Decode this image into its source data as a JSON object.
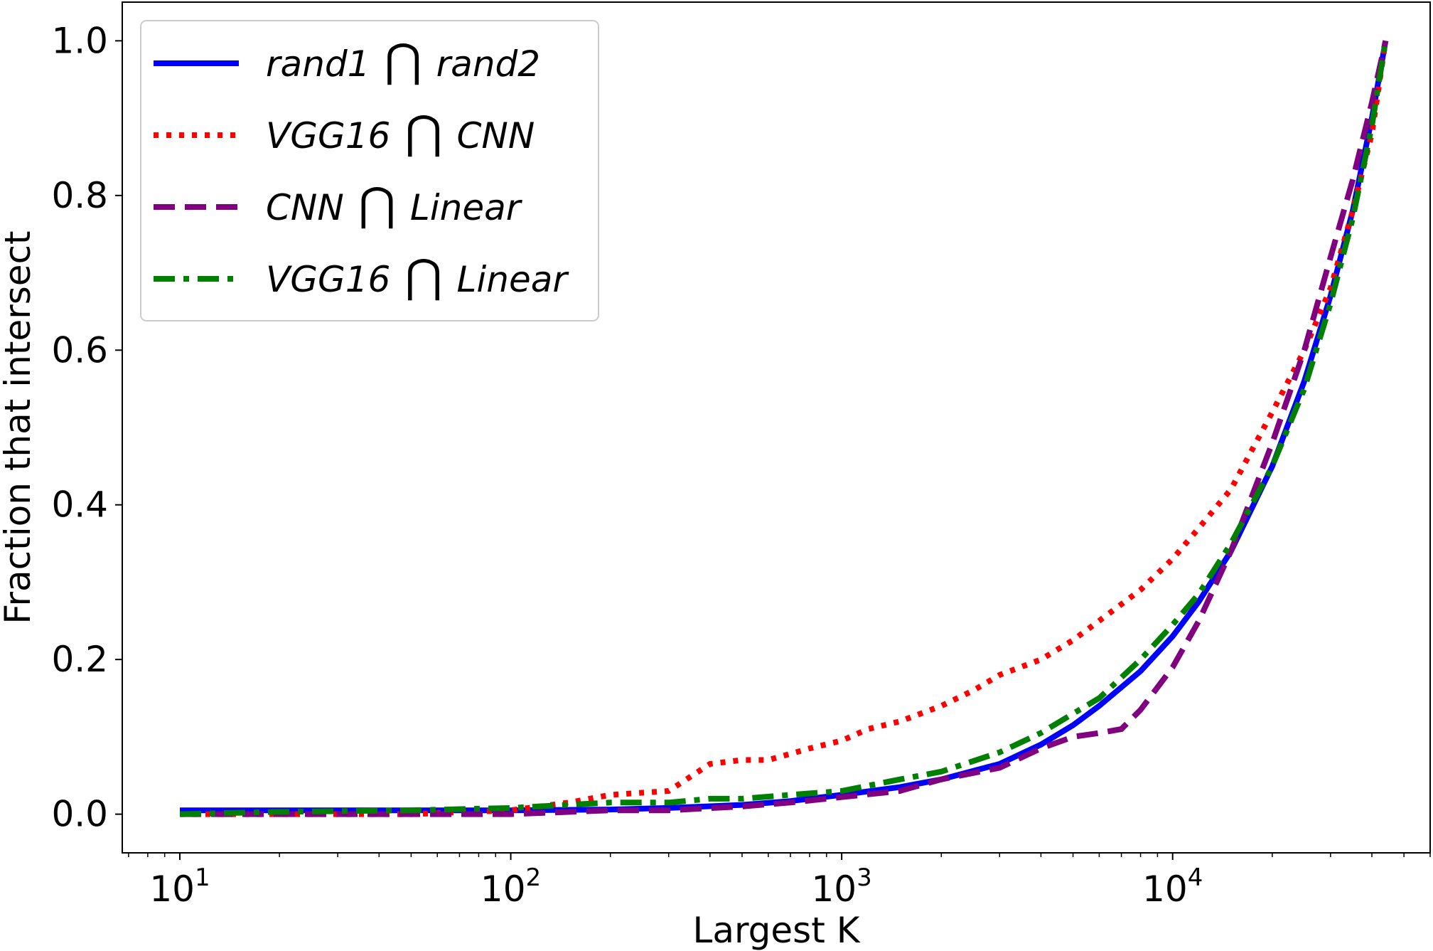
{
  "chart_data": {
    "type": "line",
    "xlabel": "Largest K",
    "ylabel": "Fraction that intersect",
    "xscale": "log",
    "xlim": [
      6.7,
      60000
    ],
    "ylim": [
      -0.05,
      1.05
    ],
    "x_ticks": [
      {
        "value": 10,
        "base": "10",
        "exp": "1"
      },
      {
        "value": 100,
        "base": "10",
        "exp": "2"
      },
      {
        "value": 1000,
        "base": "10",
        "exp": "3"
      },
      {
        "value": 10000,
        "base": "10",
        "exp": "4"
      }
    ],
    "y_ticks": [
      {
        "value": 0.0,
        "label": "0.0"
      },
      {
        "value": 0.2,
        "label": "0.2"
      },
      {
        "value": 0.4,
        "label": "0.4"
      },
      {
        "value": 0.6,
        "label": "0.6"
      },
      {
        "value": 0.8,
        "label": "0.8"
      },
      {
        "value": 1.0,
        "label": "1.0"
      }
    ],
    "grid": false,
    "legend_position": "upper-left",
    "series": [
      {
        "name_parts": [
          "rand1",
          "rand2"
        ],
        "color": "#0000ff",
        "style": "solid",
        "x": [
          10,
          20,
          50,
          100,
          200,
          300,
          500,
          700,
          1000,
          1500,
          2000,
          3000,
          4000,
          5000,
          6000,
          8000,
          10000,
          12000,
          15000,
          20000,
          25000,
          30000,
          35000,
          40000,
          44000
        ],
        "y": [
          0.005,
          0.005,
          0.005,
          0.005,
          0.006,
          0.008,
          0.012,
          0.017,
          0.025,
          0.035,
          0.045,
          0.065,
          0.09,
          0.115,
          0.14,
          0.185,
          0.23,
          0.275,
          0.34,
          0.45,
          0.56,
          0.67,
          0.78,
          0.9,
          1.0
        ]
      },
      {
        "name_parts": [
          "VGG16",
          "CNN"
        ],
        "color": "#ff0000",
        "style": "dotted",
        "x": [
          10,
          20,
          50,
          100,
          150,
          200,
          300,
          400,
          500,
          600,
          800,
          1000,
          1200,
          1500,
          2000,
          2500,
          3000,
          4000,
          5000,
          6000,
          8000,
          10000,
          12000,
          15000,
          20000,
          25000,
          30000,
          35000,
          40000,
          44000
        ],
        "y": [
          0.0,
          0.0,
          0.0,
          0.005,
          0.015,
          0.025,
          0.03,
          0.065,
          0.07,
          0.07,
          0.085,
          0.095,
          0.11,
          0.12,
          0.14,
          0.16,
          0.18,
          0.2,
          0.225,
          0.25,
          0.29,
          0.33,
          0.37,
          0.42,
          0.52,
          0.6,
          0.68,
          0.78,
          0.88,
          1.0
        ]
      },
      {
        "name_parts": [
          "CNN",
          "Linear"
        ],
        "color": "#800080",
        "style": "dashed",
        "x": [
          10,
          20,
          50,
          100,
          200,
          300,
          500,
          700,
          1000,
          1500,
          2000,
          3000,
          4000,
          5000,
          6000,
          7000,
          8000,
          10000,
          12000,
          15000,
          20000,
          25000,
          30000,
          35000,
          40000,
          44000
        ],
        "y": [
          0.0,
          0.0,
          0.0,
          0.0,
          0.005,
          0.005,
          0.01,
          0.015,
          0.022,
          0.03,
          0.045,
          0.06,
          0.085,
          0.1,
          0.105,
          0.11,
          0.135,
          0.19,
          0.25,
          0.34,
          0.48,
          0.6,
          0.72,
          0.82,
          0.92,
          1.0
        ]
      },
      {
        "name_parts": [
          "VGG16",
          "Linear"
        ],
        "color": "#008000",
        "style": "dashdot",
        "x": [
          10,
          20,
          50,
          100,
          200,
          300,
          400,
          500,
          700,
          1000,
          1500,
          2000,
          3000,
          4000,
          5000,
          6000,
          8000,
          10000,
          12000,
          15000,
          20000,
          25000,
          30000,
          35000,
          40000,
          44000
        ],
        "y": [
          0.0,
          0.003,
          0.005,
          0.008,
          0.015,
          0.015,
          0.02,
          0.02,
          0.025,
          0.03,
          0.045,
          0.055,
          0.08,
          0.105,
          0.13,
          0.15,
          0.2,
          0.245,
          0.285,
          0.35,
          0.45,
          0.55,
          0.66,
          0.77,
          0.89,
          1.0
        ]
      }
    ]
  }
}
